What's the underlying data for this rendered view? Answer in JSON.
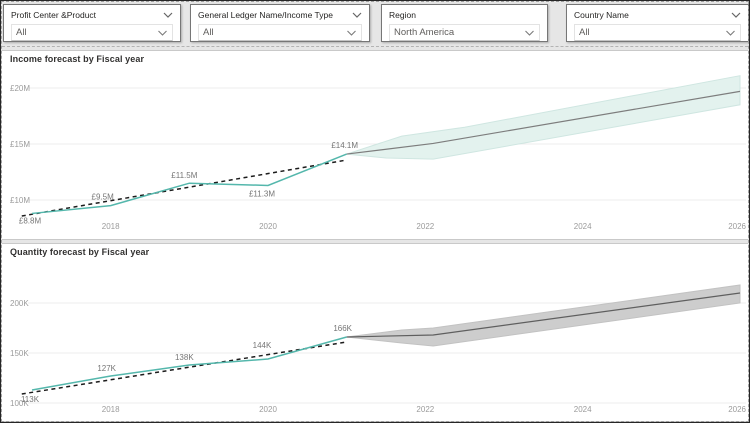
{
  "filters": [
    {
      "label": "Profit Center &Product",
      "value": "All",
      "header_chevron": true
    },
    {
      "label": "General Ledger Name/Income Type",
      "value": "All",
      "header_chevron": true
    },
    {
      "label": "Region",
      "value": "North America",
      "header_chevron": false
    },
    {
      "label": "Country Name",
      "value": "All",
      "header_chevron": true
    }
  ],
  "chart_data": [
    {
      "type": "line",
      "title": "Income forecast by Fiscal year",
      "legend_position": "none",
      "grid": true,
      "colors": {
        "actual": "#54B7AC",
        "trend": "#1c1c1c",
        "forecast_line": "#7d7d7d",
        "band_fill": "#E3F2EE",
        "band_stroke": "#cfe6e1",
        "grid": "#ececec"
      },
      "x_map": {
        "v1": 2017,
        "p1": 30,
        "v2": 2026,
        "p2": 738
      },
      "y_map": {
        "v1": 20,
        "p1": 37,
        "v2": 10,
        "p2": 149
      },
      "y_ticks": [
        {
          "v": 20,
          "label": "£20M"
        },
        {
          "v": 15,
          "label": "£15M"
        },
        {
          "v": 10,
          "label": "£10M"
        }
      ],
      "x_ticks": [
        {
          "v": 2018,
          "label": "2018"
        },
        {
          "v": 2020,
          "label": "2020"
        },
        {
          "v": 2022,
          "label": "2022"
        },
        {
          "v": 2024,
          "label": "2024"
        },
        {
          "v": 2026,
          "label": "2026"
        }
      ],
      "x_axis_y": 178,
      "actual": {
        "x": [
          2017,
          2018,
          2019,
          2020,
          2021
        ],
        "values": [
          8.8,
          9.5,
          11.5,
          11.3,
          14.1
        ],
        "labels": [
          "£8.8M",
          "£9.5M",
          "£11.5M",
          "£11.3M",
          "£14.1M"
        ],
        "label_dx": [
          -2,
          -8,
          -5,
          -6,
          -2
        ],
        "label_dy": [
          10,
          -6,
          -5,
          11,
          -6
        ]
      },
      "trend": {
        "x": [
          2016.87,
          2021.0
        ],
        "values": [
          8.57,
          13.57
        ]
      },
      "forecast": {
        "center": {
          "x": [
            2021,
            2022.1,
            2026
          ],
          "values": [
            14.1,
            15.05,
            19.7
          ]
        },
        "upper": {
          "x": [
            2021,
            2021.7,
            2022.5,
            2026
          ],
          "values": [
            14.1,
            15.7,
            16.5,
            21.1
          ]
        },
        "lower": {
          "x": [
            2021,
            2021.5,
            2022.1,
            2026
          ],
          "values": [
            14.1,
            13.75,
            13.65,
            18.5
          ]
        }
      }
    },
    {
      "type": "line",
      "title": "Quantity forecast by Fiscal year",
      "legend_position": "none",
      "grid": true,
      "colors": {
        "actual": "#54B7AC",
        "trend": "#1c1c1c",
        "forecast_line": "#5f5f5f",
        "band_fill": "#cdcdcd",
        "band_stroke": "#c2c2c2",
        "grid": "#ececec"
      },
      "x_map": {
        "v1": 2017,
        "p1": 30,
        "v2": 2026,
        "p2": 738
      },
      "y_map": {
        "v1": 200,
        "p1": 59,
        "v2": 100,
        "p2": 159
      },
      "y_ticks": [
        {
          "v": 200,
          "label": "200K"
        },
        {
          "v": 150,
          "label": "150K"
        },
        {
          "v": 100,
          "label": "100K"
        }
      ],
      "x_ticks": [
        {
          "v": 2018,
          "label": "2018"
        },
        {
          "v": 2020,
          "label": "2020"
        },
        {
          "v": 2022,
          "label": "2022"
        },
        {
          "v": 2024,
          "label": "2024"
        },
        {
          "v": 2026,
          "label": "2026"
        }
      ],
      "x_axis_y": 168,
      "actual": {
        "x": [
          2017,
          2018,
          2019,
          2020,
          2021
        ],
        "values": [
          113,
          127,
          138,
          144,
          166
        ],
        "labels": [
          "113K",
          "127K",
          "138K",
          "144K",
          "166K"
        ],
        "label_dx": [
          -2,
          -4,
          -5,
          -6,
          -4
        ],
        "label_dy": [
          12,
          -5,
          -5,
          -11,
          -6
        ]
      },
      "trend": {
        "x": [
          2016.87,
          2021.0
        ],
        "values": [
          109,
          161
        ]
      },
      "forecast": {
        "center": {
          "x": [
            2021,
            2022.1,
            2026
          ],
          "values": [
            166,
            168,
            210
          ]
        },
        "upper": {
          "x": [
            2021,
            2021.7,
            2022.1,
            2026
          ],
          "values": [
            166,
            173,
            175,
            218
          ]
        },
        "lower": {
          "x": [
            2021,
            2021.7,
            2022.1,
            2026
          ],
          "values": [
            166,
            160,
            157,
            200
          ]
        }
      }
    }
  ]
}
